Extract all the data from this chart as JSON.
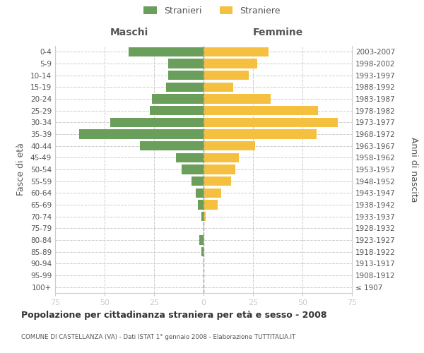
{
  "age_groups": [
    "100+",
    "95-99",
    "90-94",
    "85-89",
    "80-84",
    "75-79",
    "70-74",
    "65-69",
    "60-64",
    "55-59",
    "50-54",
    "45-49",
    "40-44",
    "35-39",
    "30-34",
    "25-29",
    "20-24",
    "15-19",
    "10-14",
    "5-9",
    "0-4"
  ],
  "birth_years": [
    "≤ 1907",
    "1908-1912",
    "1913-1917",
    "1918-1922",
    "1923-1927",
    "1928-1932",
    "1933-1937",
    "1938-1942",
    "1943-1947",
    "1948-1952",
    "1953-1957",
    "1958-1962",
    "1963-1967",
    "1968-1972",
    "1973-1977",
    "1978-1982",
    "1983-1987",
    "1988-1992",
    "1993-1997",
    "1998-2002",
    "2003-2007"
  ],
  "maschi": [
    0,
    0,
    0,
    1,
    2,
    0,
    1,
    3,
    4,
    6,
    11,
    14,
    32,
    63,
    47,
    27,
    26,
    19,
    18,
    18,
    38
  ],
  "femmine": [
    0,
    0,
    0,
    0,
    0,
    0,
    1,
    7,
    9,
    14,
    16,
    18,
    26,
    57,
    68,
    58,
    34,
    15,
    23,
    27,
    33
  ],
  "color_maschi": "#6a9e5b",
  "color_femmine": "#f5c040",
  "title_main": "Popolazione per cittadinanza straniera per età e sesso - 2008",
  "subtitle": "COMUNE DI CASTELLANZA (VA) - Dati ISTAT 1° gennaio 2008 - Elaborazione TUTTITALIA.IT",
  "ylabel_left": "Fasce di età",
  "ylabel_right": "Anni di nascita",
  "xlabel_left": "Maschi",
  "xlabel_right": "Femmine",
  "legend_maschi": "Stranieri",
  "legend_femmine": "Straniere",
  "xlim": 75,
  "background_color": "#ffffff",
  "grid_color": "#cccccc"
}
